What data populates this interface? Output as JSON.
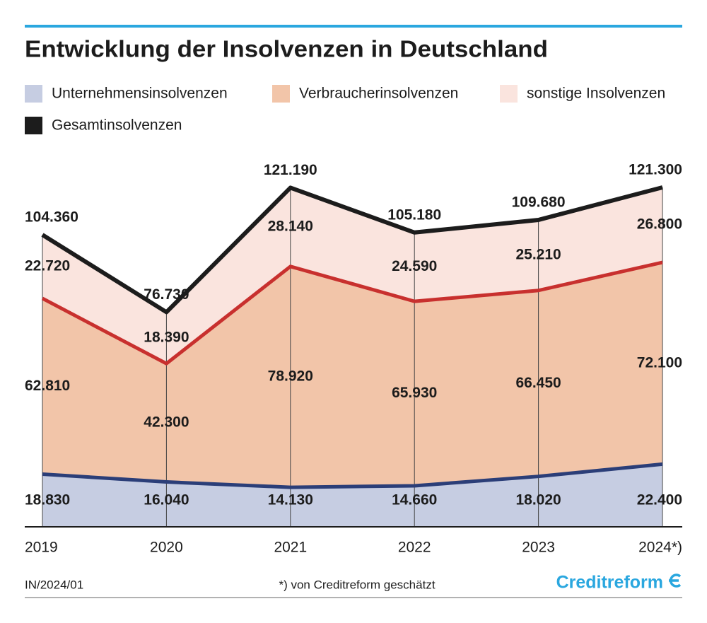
{
  "chart_data": {
    "type": "stacked_area",
    "title": "Entwicklung der Insolvenzen in Deutschland",
    "categories": [
      "2019",
      "2020",
      "2021",
      "2022",
      "2023",
      "2024*)"
    ],
    "series": [
      {
        "name": "Unternehmensinsolvenzen",
        "color": "#c6cde2",
        "line_color": "#2b3e78",
        "values": [
          18830,
          16040,
          14130,
          14660,
          18020,
          22400
        ],
        "value_labels": [
          "18.830",
          "16.040",
          "14.130",
          "14.660",
          "18.020",
          "22.400"
        ]
      },
      {
        "name": "Verbraucherinsolvenzen",
        "color": "#f2c5a9",
        "line_color": "#c8302e",
        "values": [
          62810,
          42300,
          78920,
          65930,
          66450,
          72100
        ],
        "value_labels": [
          "62.810",
          "42.300",
          "78.920",
          "65.930",
          "66.450",
          "72.100"
        ]
      },
      {
        "name": "sonstige Insolvenzen",
        "color": "#fae4de",
        "values": [
          22720,
          18390,
          28140,
          24590,
          25210,
          26800
        ],
        "value_labels": [
          "22.720",
          "18.390",
          "28.140",
          "24.590",
          "25.210",
          "26.800"
        ]
      },
      {
        "name": "Gesamtinsolvenzen",
        "color": "#1c1c1c",
        "type": "line",
        "values": [
          104360,
          76730,
          121190,
          105180,
          109680,
          121300
        ],
        "value_labels": [
          "104.360",
          "76.730",
          "121.190",
          "105.180",
          "109.680",
          "121.300"
        ]
      }
    ],
    "footer_left": "IN/2024/01",
    "footnote": "*) von Creditreform geschätzt",
    "brand": "Creditreform"
  }
}
